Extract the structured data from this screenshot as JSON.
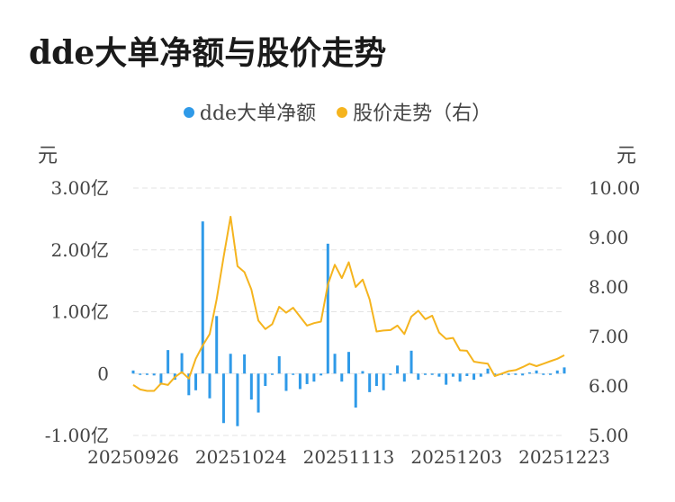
{
  "title": "dde大单净额与股价走势",
  "legend": {
    "series1": "dde大单净额",
    "series2": "股价走势（右）"
  },
  "axes": {
    "left_unit": "元",
    "right_unit": "元"
  },
  "colors": {
    "bar": "#2f9ae8",
    "line": "#f5b41e",
    "grid": "#e3e3e3"
  },
  "chart_data": {
    "type": "bar+line",
    "title": "dde大单净额与股价走势",
    "x_tick_labels": [
      "20250926",
      "20251024",
      "20251113",
      "20251203",
      "20251223"
    ],
    "left_axis": {
      "label": "元",
      "ylim": [
        -1.0,
        3.0
      ],
      "unit": "亿",
      "ticks": [
        "3.00亿",
        "2.00亿",
        "1.00亿",
        "0",
        "-1.00亿"
      ]
    },
    "right_axis": {
      "label": "元",
      "ylim": [
        5.0,
        10.0
      ],
      "ticks": [
        "10.00",
        "9.00",
        "8.00",
        "7.00",
        "6.00",
        "5.00"
      ]
    },
    "grid": true,
    "legend_position": "top-center",
    "series": [
      {
        "name": "dde大单净额",
        "type": "bar",
        "axis": "left",
        "values": [
          0.05,
          -0.02,
          -0.02,
          -0.03,
          -0.18,
          0.38,
          -0.1,
          0.33,
          -0.35,
          -0.27,
          2.46,
          -0.4,
          0.93,
          -0.8,
          0.32,
          -0.85,
          0.31,
          -0.42,
          -0.63,
          -0.2,
          0.0,
          0.28,
          -0.28,
          -0.02,
          -0.25,
          -0.17,
          -0.13,
          -0.03,
          2.1,
          0.32,
          -0.13,
          0.35,
          -0.55,
          0.04,
          -0.3,
          -0.2,
          -0.27,
          -0.02,
          0.13,
          -0.13,
          0.37,
          -0.1,
          -0.02,
          -0.02,
          -0.05,
          -0.18,
          -0.05,
          -0.13,
          -0.04,
          -0.1,
          -0.05,
          0.08,
          -0.02,
          -0.02,
          -0.02,
          -0.01,
          -0.03,
          0.02,
          0.05,
          -0.02,
          0.0,
          0.05,
          0.1
        ]
      },
      {
        "name": "股价走势（右）",
        "type": "line",
        "axis": "right",
        "values": [
          6.02,
          5.93,
          5.9,
          5.9,
          6.05,
          6.02,
          6.18,
          6.28,
          6.15,
          6.55,
          6.82,
          7.05,
          7.75,
          8.6,
          9.42,
          8.42,
          8.3,
          7.95,
          7.32,
          7.15,
          7.25,
          7.6,
          7.48,
          7.58,
          7.4,
          7.22,
          7.27,
          7.3,
          8.05,
          8.45,
          8.18,
          8.5,
          8.0,
          8.15,
          7.75,
          7.1,
          7.12,
          7.13,
          7.22,
          7.05,
          7.4,
          7.52,
          7.35,
          7.42,
          7.08,
          6.95,
          6.97,
          6.72,
          6.71,
          6.49,
          6.47,
          6.45,
          6.2,
          6.25,
          6.3,
          6.32,
          6.38,
          6.45,
          6.4,
          6.45,
          6.5,
          6.55,
          6.62
        ]
      }
    ]
  }
}
